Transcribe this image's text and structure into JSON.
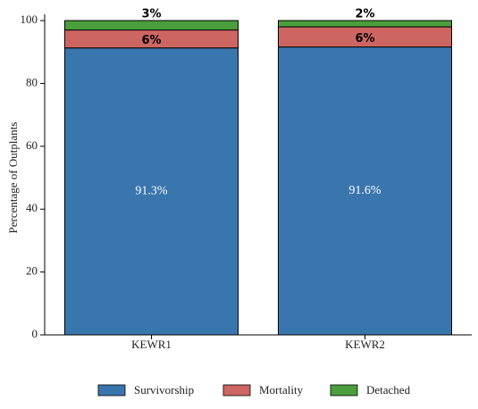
{
  "chart_data": {
    "type": "bar",
    "stacked": true,
    "ylabel": "Percentage of Outplants",
    "categories": [
      "KEWR1",
      "KEWR2"
    ],
    "series": [
      {
        "name": "Survivorship",
        "color": "#3a76ae",
        "values": [
          91.3,
          91.6
        ],
        "value_labels": [
          "91.3%",
          "91.6%"
        ]
      },
      {
        "name": "Mortality",
        "color": "#cd6663",
        "values": [
          5.7,
          6.4
        ],
        "value_labels": [
          "6%",
          "6%"
        ]
      },
      {
        "name": "Detached",
        "color": "#4a9e3c",
        "values": [
          3,
          2
        ],
        "value_labels": [
          "3%",
          "2%"
        ]
      }
    ],
    "ylim": [
      0,
      102
    ],
    "yticks": [
      0,
      20,
      40,
      60,
      80,
      100
    ]
  }
}
